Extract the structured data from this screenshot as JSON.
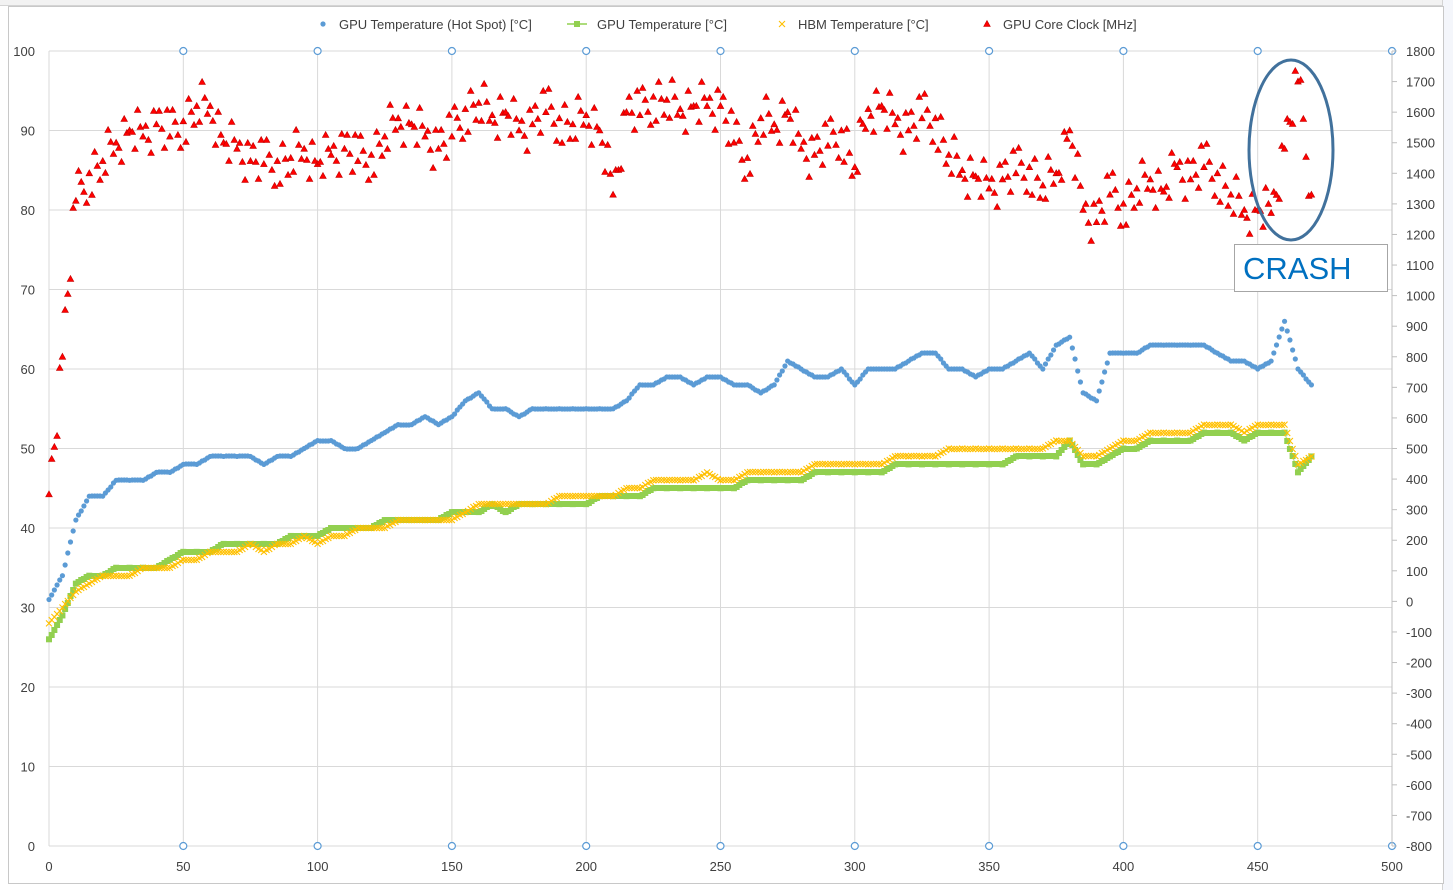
{
  "chart_data": {
    "type": "scatter",
    "title": "",
    "xlabel": "",
    "ylabel": "",
    "xlim": [
      0,
      500
    ],
    "ylim": [
      0,
      100
    ],
    "y2lim": [
      -800,
      1800
    ],
    "x_ticks": [
      "0",
      "50",
      "100",
      "150",
      "200",
      "250",
      "300",
      "350",
      "400",
      "450",
      "500"
    ],
    "y_ticks": [
      "0",
      "10",
      "20",
      "30",
      "40",
      "50",
      "60",
      "70",
      "80",
      "90",
      "100"
    ],
    "y2_ticks": [
      "-800",
      "-700",
      "-600",
      "-500",
      "-400",
      "-300",
      "-200",
      "-100",
      "0",
      "100",
      "200",
      "300",
      "400",
      "500",
      "600",
      "700",
      "800",
      "900",
      "1000",
      "1100",
      "1200",
      "1300",
      "1400",
      "1500",
      "1600",
      "1700",
      "1800"
    ],
    "grid": true,
    "legend_position": "top",
    "x": [
      0,
      5,
      10,
      15,
      20,
      25,
      30,
      35,
      40,
      45,
      50,
      55,
      60,
      65,
      70,
      75,
      80,
      85,
      90,
      95,
      100,
      105,
      110,
      115,
      120,
      125,
      130,
      135,
      140,
      145,
      150,
      155,
      160,
      165,
      170,
      175,
      180,
      185,
      190,
      195,
      200,
      205,
      210,
      215,
      220,
      225,
      230,
      235,
      240,
      245,
      250,
      255,
      260,
      265,
      270,
      275,
      280,
      285,
      290,
      295,
      300,
      305,
      310,
      315,
      320,
      325,
      330,
      335,
      340,
      345,
      350,
      355,
      360,
      365,
      370,
      375,
      380,
      385,
      390,
      395,
      400,
      405,
      410,
      415,
      420,
      425,
      430,
      435,
      440,
      445,
      450,
      455,
      460,
      465,
      470
    ],
    "series": [
      {
        "name": "GPU Temperature (Hot Spot) [°C]",
        "axis": "left",
        "color": "#5b9bd5",
        "marker": "circle",
        "values": [
          31,
          34,
          41,
          44,
          44,
          46,
          46,
          46,
          47,
          47,
          48,
          48,
          49,
          49,
          49,
          49,
          48,
          49,
          49,
          50,
          51,
          51,
          50,
          50,
          51,
          52,
          53,
          53,
          54,
          53,
          54,
          56,
          57,
          55,
          55,
          54,
          55,
          55,
          55,
          55,
          55,
          55,
          55,
          56,
          58,
          58,
          59,
          59,
          58,
          59,
          59,
          58,
          58,
          57,
          58,
          61,
          60,
          59,
          59,
          60,
          58,
          60,
          60,
          60,
          61,
          62,
          62,
          60,
          60,
          59,
          60,
          60,
          61,
          62,
          60,
          63,
          64,
          57,
          56,
          62,
          62,
          62,
          63,
          63,
          63,
          63,
          63,
          62,
          61,
          61,
          60,
          61,
          66,
          60,
          58
        ]
      },
      {
        "name": "GPU Temperature [°C]",
        "axis": "left",
        "color": "#92d050",
        "marker": "square",
        "values": [
          26,
          29,
          33,
          34,
          34,
          35,
          35,
          35,
          35,
          36,
          37,
          37,
          37,
          38,
          38,
          38,
          38,
          38,
          39,
          39,
          39,
          40,
          40,
          40,
          40,
          41,
          41,
          41,
          41,
          41,
          42,
          42,
          42,
          43,
          42,
          43,
          43,
          43,
          43,
          43,
          43,
          44,
          44,
          44,
          44,
          45,
          45,
          45,
          45,
          45,
          45,
          45,
          46,
          46,
          46,
          46,
          46,
          47,
          47,
          47,
          47,
          47,
          47,
          48,
          48,
          48,
          48,
          48,
          48,
          48,
          48,
          48,
          49,
          49,
          49,
          49,
          51,
          48,
          48,
          49,
          50,
          50,
          51,
          51,
          51,
          51,
          52,
          52,
          52,
          51,
          52,
          52,
          52,
          47,
          49
        ]
      },
      {
        "name": "HBM Temperature [°C]",
        "axis": "left",
        "color": "#ffc000",
        "marker": "x",
        "values": [
          28,
          30,
          32,
          33,
          34,
          34,
          34,
          35,
          35,
          35,
          36,
          36,
          37,
          37,
          37,
          38,
          37,
          38,
          38,
          39,
          38,
          39,
          39,
          40,
          40,
          40,
          41,
          41,
          41,
          41,
          41,
          42,
          43,
          43,
          43,
          43,
          43,
          43,
          44,
          44,
          44,
          44,
          44,
          45,
          45,
          46,
          46,
          46,
          46,
          47,
          46,
          46,
          47,
          47,
          47,
          47,
          47,
          48,
          48,
          48,
          48,
          48,
          48,
          49,
          49,
          49,
          49,
          50,
          50,
          50,
          50,
          50,
          50,
          50,
          50,
          51,
          51,
          49,
          49,
          50,
          51,
          51,
          52,
          52,
          52,
          52,
          53,
          53,
          53,
          52,
          53,
          53,
          53,
          48,
          49
        ]
      },
      {
        "name": "GPU Core Clock [MHz]",
        "axis": "right",
        "color": "#ff0000",
        "marker": "triangle",
        "values": [
          350,
          800,
          1310,
          1400,
          1440,
          1500,
          1540,
          1520,
          1560,
          1520,
          1570,
          1620,
          1620,
          1500,
          1480,
          1440,
          1430,
          1440,
          1450,
          1480,
          1430,
          1460,
          1480,
          1440,
          1460,
          1520,
          1580,
          1560,
          1520,
          1480,
          1520,
          1610,
          1630,
          1590,
          1600,
          1540,
          1560,
          1600,
          1580,
          1560,
          1590,
          1540,
          1330,
          1600,
          1590,
          1650,
          1640,
          1610,
          1620,
          1620,
          1620,
          1500,
          1450,
          1580,
          1560,
          1600,
          1480,
          1460,
          1490,
          1540,
          1420,
          1610,
          1620,
          1560,
          1540,
          1580,
          1580,
          1460,
          1410,
          1390,
          1350,
          1380,
          1400,
          1420,
          1360,
          1400,
          1540,
          1280,
          1240,
          1330,
          1300,
          1350,
          1380,
          1340,
          1420,
          1380,
          1420,
          1400,
          1330,
          1280,
          1280,
          1270,
          1480,
          1700,
          1330
        ]
      }
    ],
    "annotations": [
      {
        "text": "CRASH",
        "shape": "ellipse",
        "color": "#41719c"
      }
    ]
  }
}
